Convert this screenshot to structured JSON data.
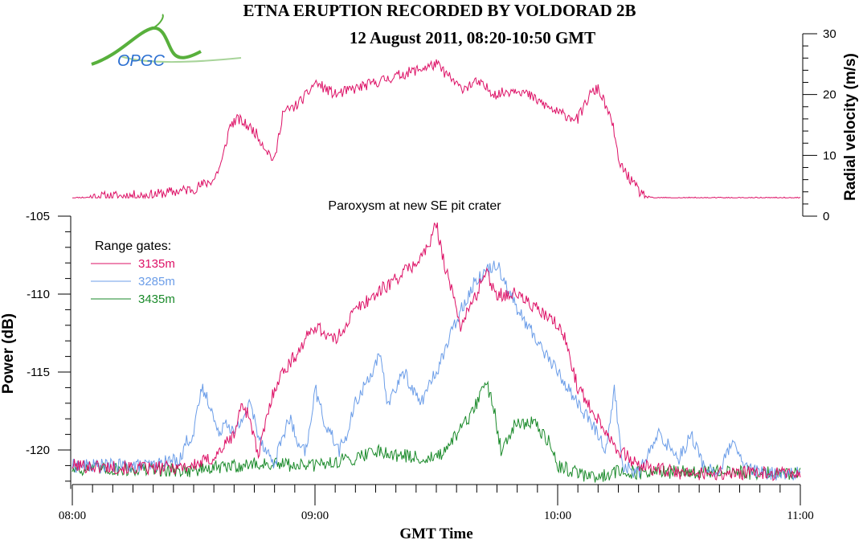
{
  "chart_data": {
    "type": "line",
    "title": "ETNA ERUPTION RECORDED BY VOLDORAD 2B",
    "subtitle": "12 August 2011, 08:20-10:50 GMT",
    "logo_text": "OPGC",
    "annotation": "Paroxysm at new SE pit crater",
    "xlabel": "GMT Time",
    "x_ticks": [
      "08:00",
      "09:00",
      "10:00",
      "11:00"
    ],
    "xlim": [
      "08:00",
      "11:00"
    ],
    "grid": false,
    "panels": [
      {
        "name": "velocity",
        "ylabel": "Radial velocity (m/s)",
        "y_axis_side": "right",
        "ylim": [
          0,
          30
        ],
        "y_ticks": [
          0,
          10,
          20,
          30
        ],
        "series": [
          {
            "color": "#dd1166",
            "x": [
              "08:00",
              "08:20",
              "08:30",
              "08:35",
              "08:37",
              "08:39",
              "08:41",
              "08:43",
              "08:45",
              "08:47",
              "08:50",
              "08:52",
              "08:55",
              "08:58",
              "09:00",
              "09:05",
              "09:10",
              "09:15",
              "09:20",
              "09:25",
              "09:30",
              "09:33",
              "09:36",
              "09:40",
              "09:45",
              "09:50",
              "09:55",
              "10:00",
              "10:05",
              "10:08",
              "10:10",
              "10:12",
              "10:14",
              "10:15",
              "10:17",
              "10:19",
              "10:21",
              "10:23",
              "10:25",
              "10:30",
              "10:40",
              "10:50",
              "10:55",
              "11:00"
            ],
            "values": [
              3,
              3.5,
              4.5,
              6,
              9,
              15,
              16,
              15,
              14,
              12,
              9,
              17,
              18,
              20,
              22,
              20,
              21,
              22,
              23,
              24,
              25,
              23,
              21,
              22,
              20,
              21,
              19,
              17,
              16,
              20,
              21,
              18,
              14,
              9,
              7,
              5,
              3.5,
              3,
              3,
              3,
              3,
              3,
              3,
              3
            ]
          }
        ]
      },
      {
        "name": "power",
        "ylabel": "Power (dB)",
        "y_axis_side": "left",
        "ylim": [
          -122.5,
          -105
        ],
        "y_ticks": [
          -105,
          -110,
          -115,
          -120
        ],
        "legend_title": "Range gates:",
        "legend_position": "top-left",
        "series": [
          {
            "name": "3135m",
            "color": "#dd1166",
            "x": [
              "08:00",
              "08:20",
              "08:30",
              "08:35",
              "08:40",
              "08:42",
              "08:44",
              "08:46",
              "08:48",
              "08:50",
              "08:52",
              "08:55",
              "09:00",
              "09:05",
              "09:10",
              "09:15",
              "09:20",
              "09:25",
              "09:28",
              "09:30",
              "09:32",
              "09:34",
              "09:36",
              "09:38",
              "09:40",
              "09:42",
              "09:45",
              "09:50",
              "09:55",
              "10:00",
              "10:02",
              "10:05",
              "10:10",
              "10:15",
              "10:20",
              "10:30",
              "10:40",
              "10:50",
              "11:00"
            ],
            "values": [
              -121,
              -121.2,
              -121,
              -120.5,
              -119,
              -117,
              -118,
              -120.5,
              -118,
              -116,
              -115,
              -114,
              -112,
              -113,
              -111,
              -110,
              -109,
              -108,
              -107,
              -105.5,
              -108,
              -110,
              -112,
              -111,
              -110,
              -108.5,
              -110,
              -110,
              -111,
              -112,
              -113,
              -116,
              -118,
              -120,
              -121,
              -121.5,
              -121.5,
              -121.5,
              -121.5
            ]
          },
          {
            "name": "3285m",
            "color": "#6b9de8",
            "x": [
              "08:00",
              "08:20",
              "08:27",
              "08:28",
              "08:30",
              "08:32",
              "08:34",
              "08:36",
              "08:38",
              "08:40",
              "08:42",
              "08:44",
              "08:46",
              "08:48",
              "08:50",
              "08:52",
              "08:54",
              "08:56",
              "08:58",
              "09:00",
              "09:02",
              "09:04",
              "09:06",
              "09:08",
              "09:10",
              "09:12",
              "09:14",
              "09:16",
              "09:18",
              "09:20",
              "09:22",
              "09:24",
              "09:26",
              "09:28",
              "09:30",
              "09:33",
              "09:36",
              "09:40",
              "09:45",
              "09:50",
              "09:55",
              "10:00",
              "10:05",
              "10:10",
              "10:12",
              "10:14",
              "10:16",
              "10:20",
              "10:25",
              "10:30",
              "10:33",
              "10:36",
              "10:40",
              "10:43",
              "10:46",
              "10:50",
              "11:00"
            ],
            "values": [
              -121,
              -121,
              -120.5,
              -119.5,
              -119,
              -116,
              -117,
              -119,
              -118,
              -119,
              -118,
              -117,
              -119,
              -120,
              -121,
              -119,
              -118,
              -120,
              -120,
              -116,
              -118,
              -119,
              -120,
              -119,
              -117,
              -116,
              -115,
              -114,
              -117,
              -116,
              -115,
              -116,
              -117,
              -116,
              -115,
              -113,
              -111,
              -109,
              -108,
              -111,
              -113,
              -115,
              -117,
              -119,
              -120,
              -116,
              -121,
              -121.5,
              -119,
              -120.5,
              -119,
              -121,
              -121.5,
              -119.5,
              -121,
              -121.5,
              -121.5
            ]
          },
          {
            "name": "3435m",
            "color": "#1a8a2a",
            "x": [
              "08:00",
              "08:30",
              "08:45",
              "09:00",
              "09:10",
              "09:15",
              "09:20",
              "09:25",
              "09:30",
              "09:33",
              "09:35",
              "09:38",
              "09:40",
              "09:42",
              "09:44",
              "09:46",
              "09:48",
              "09:50",
              "09:52",
              "09:54",
              "09:56",
              "09:58",
              "10:00",
              "10:05",
              "10:10",
              "10:15",
              "10:20",
              "10:30",
              "11:00"
            ],
            "values": [
              -121.2,
              -121.3,
              -120.9,
              -121,
              -120.5,
              -120,
              -120.3,
              -120.5,
              -120.5,
              -120,
              -119,
              -118,
              -117,
              -115.5,
              -117,
              -120,
              -119,
              -118,
              -118.5,
              -118,
              -119,
              -119.5,
              -121,
              -121.5,
              -121.8,
              -121.3,
              -121.5,
              -121.4,
              -121.5
            ]
          }
        ]
      }
    ]
  }
}
